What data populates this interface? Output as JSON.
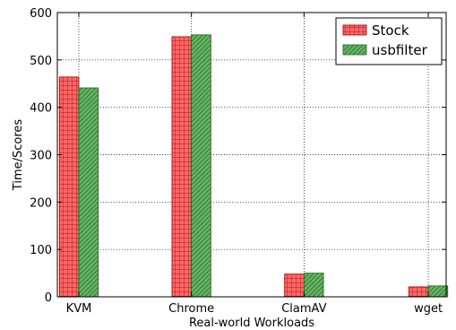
{
  "chart_data": {
    "type": "bar",
    "title": "",
    "xlabel": "Real-world Workloads",
    "ylabel": "Time/Scores",
    "categories": [
      "KVM",
      "Chrome",
      "ClamAV",
      "wget"
    ],
    "series": [
      {
        "name": "Stock",
        "values": [
          464,
          549,
          48,
          21
        ],
        "color": "#ff6666",
        "edge": "#990000",
        "hatch": "grid"
      },
      {
        "name": "usbfilter",
        "values": [
          441,
          553,
          50,
          23
        ],
        "color": "#66b366",
        "edge": "#1a661a",
        "hatch": "diagonal"
      }
    ],
    "ylim": [
      0,
      600
    ],
    "yticks": [
      0,
      100,
      200,
      300,
      400,
      500,
      600
    ],
    "grid": true,
    "legend_position": "top-right"
  }
}
